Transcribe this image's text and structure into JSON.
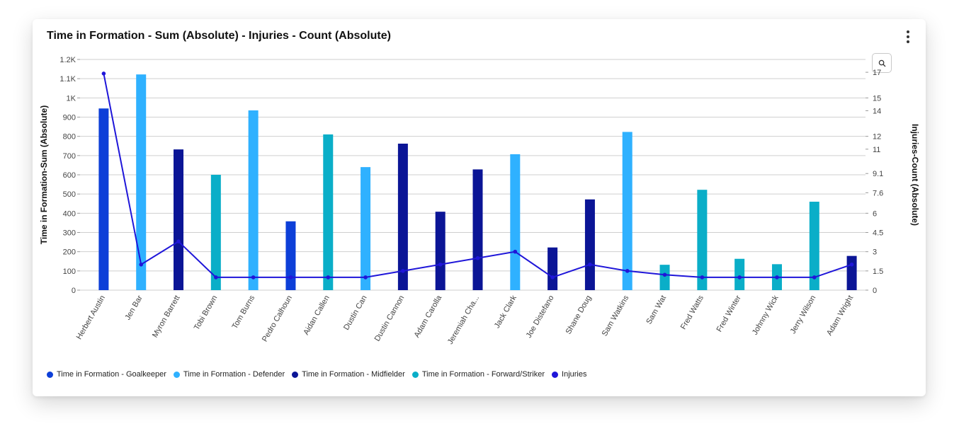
{
  "card": {
    "title": "Time in Formation - Sum (Absolute) - Injuries - Count (Absolute)",
    "menu_icon": "more-vertical-icon",
    "zoom_icon": "search-icon"
  },
  "colors": {
    "goalkeeper": "#0d3fd8",
    "defender": "#2fb1ff",
    "midfielder": "#0b1596",
    "forward": "#0aaec8",
    "injuries": "#1f16d9",
    "grid": "#cfcfcf"
  },
  "chart_data": {
    "type": "bar",
    "title": "Time in Formation - Sum (Absolute) - Injuries - Count (Absolute)",
    "ylabel": "Time in Formation-Sum (Absolute)",
    "y2label": "Injuries-Count (Absolute)",
    "ylim": [
      0,
      1200
    ],
    "y2lim": [
      0,
      18
    ],
    "y_ticks": [
      0,
      100,
      200,
      300,
      400,
      500,
      600,
      700,
      800,
      900,
      1000,
      1100,
      1200
    ],
    "y_tick_labels": [
      "0",
      "100",
      "200",
      "300",
      "400",
      "500",
      "600",
      "700",
      "800",
      "900",
      "1K",
      "1.1K",
      "1.2K"
    ],
    "y2_ticks": [
      0,
      1.5,
      3,
      4.5,
      6,
      7.6,
      9.1,
      11,
      12,
      14,
      15,
      17
    ],
    "y2_tick_labels": [
      "0",
      "1.5",
      "3",
      "4.5",
      "6",
      "7.6",
      "9.1",
      "11",
      "12",
      "14",
      "15",
      "17"
    ],
    "grid": true,
    "legend_position": "bottom-left",
    "categories": [
      "Herbert Austin",
      "Jen Bar",
      "Myron Barrett",
      "Tobi Brown",
      "Tom Burns",
      "Pedro Calhoun",
      "Aidan Callen",
      "Dustin Can",
      "Dustin Cannon",
      "Adam Carolla",
      "Jeremiah Cha...",
      "Jack Clark",
      "Joe Distefano",
      "Shane Doug",
      "Sam Watkins",
      "Sam Wat",
      "Fred Watts",
      "Fred Winter",
      "Johnny Wick",
      "Jerry Wilson",
      "Adam Wright"
    ],
    "series": [
      {
        "name": "Time in Formation - Goalkeeper",
        "type": "bar",
        "color_key": "goalkeeper",
        "values": [
          945,
          null,
          null,
          null,
          null,
          358,
          null,
          null,
          null,
          null,
          null,
          null,
          null,
          null,
          null,
          null,
          null,
          null,
          null,
          null,
          null
        ]
      },
      {
        "name": "Time in Formation - Defender",
        "type": "bar",
        "color_key": "defender",
        "values": [
          null,
          1122,
          null,
          null,
          935,
          null,
          null,
          640,
          null,
          null,
          null,
          707,
          null,
          null,
          823,
          null,
          null,
          null,
          null,
          null,
          null
        ]
      },
      {
        "name": "Time in Formation - Midfielder",
        "type": "bar",
        "color_key": "midfielder",
        "values": [
          null,
          null,
          732,
          null,
          null,
          null,
          null,
          null,
          762,
          408,
          628,
          null,
          222,
          472,
          null,
          null,
          null,
          null,
          null,
          null,
          178
        ]
      },
      {
        "name": "Time in Formation - Forward/Striker",
        "type": "bar",
        "color_key": "forward",
        "values": [
          null,
          null,
          null,
          600,
          null,
          null,
          810,
          null,
          null,
          null,
          null,
          null,
          null,
          null,
          null,
          132,
          522,
          163,
          135,
          460,
          null
        ]
      },
      {
        "name": "Injuries",
        "type": "line",
        "axis": "right",
        "color_key": "injuries",
        "values": [
          16.9,
          2,
          3.8,
          1,
          1,
          1,
          1,
          1,
          1.5,
          2,
          2.5,
          3,
          1,
          2,
          1.5,
          1.2,
          1,
          1,
          1,
          1,
          2
        ]
      }
    ]
  }
}
